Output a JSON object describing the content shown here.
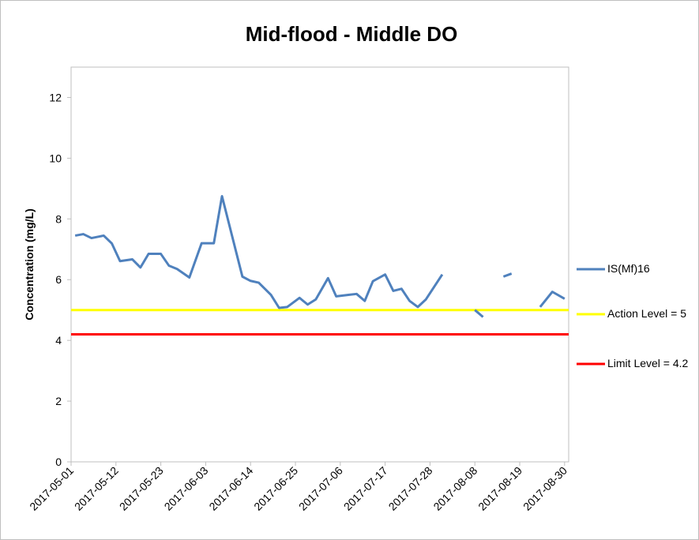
{
  "chart_data": {
    "type": "line",
    "title": "Mid-flood - Middle DO",
    "y_label": "Concentration (mg/L)",
    "x": [
      "2017-05-02",
      "2017-05-04",
      "2017-05-06",
      "2017-05-09",
      "2017-05-11",
      "2017-05-13",
      "2017-05-16",
      "2017-05-18",
      "2017-05-20",
      "2017-05-23",
      "2017-05-25",
      "2017-05-27",
      "2017-05-30",
      "2017-06-02",
      "2017-06-05",
      "2017-06-07",
      "2017-06-12",
      "2017-06-14",
      "2017-06-16",
      "2017-06-19",
      "2017-06-21",
      "2017-06-23",
      "2017-06-26",
      "2017-06-28",
      "2017-06-30",
      "2017-07-03",
      "2017-07-05",
      "2017-07-08",
      "2017-07-10",
      "2017-07-12",
      "2017-07-14",
      "2017-07-17",
      "2017-07-19",
      "2017-07-21",
      "2017-07-23",
      "2017-07-25",
      "2017-07-27",
      "2017-07-31",
      "2017-08-04",
      "2017-08-08",
      "2017-08-10",
      "2017-08-13",
      "2017-08-15",
      "2017-08-17",
      "2017-08-21",
      "2017-08-24",
      "2017-08-27",
      "2017-08-30"
    ],
    "series": [
      {
        "name": "IS(Mf)16",
        "color": "#4f81bd",
        "values": [
          7.45,
          7.5,
          7.37,
          7.45,
          7.19,
          6.61,
          6.67,
          6.4,
          6.85,
          6.85,
          6.46,
          6.35,
          6.07,
          7.2,
          7.2,
          8.75,
          6.1,
          5.96,
          5.9,
          5.5,
          5.07,
          5.1,
          5.4,
          5.18,
          5.35,
          6.05,
          5.45,
          5.5,
          5.53,
          5.3,
          5.95,
          6.17,
          5.63,
          5.7,
          5.3,
          5.1,
          5.35,
          6.17,
          null,
          5.0,
          4.77,
          null,
          6.1,
          6.2,
          null,
          5.1,
          5.6,
          5.37
        ]
      }
    ],
    "reference_lines": [
      {
        "name": "Action Level = 5",
        "value": 5,
        "color": "#ffff00"
      },
      {
        "name": "Limit Level = 4.2",
        "value": 4.2,
        "color": "#ff0000"
      }
    ],
    "xlim": [
      "2017-05-01",
      "2017-08-31"
    ],
    "xticks": [
      "2017-05-01",
      "2017-05-12",
      "2017-05-23",
      "2017-06-03",
      "2017-06-14",
      "2017-06-25",
      "2017-07-06",
      "2017-07-17",
      "2017-07-28",
      "2017-08-08",
      "2017-08-19",
      "2017-08-30"
    ],
    "ylim": [
      0,
      13
    ],
    "yticks": [
      0,
      2,
      4,
      6,
      8,
      10,
      12
    ],
    "grid": false
  }
}
